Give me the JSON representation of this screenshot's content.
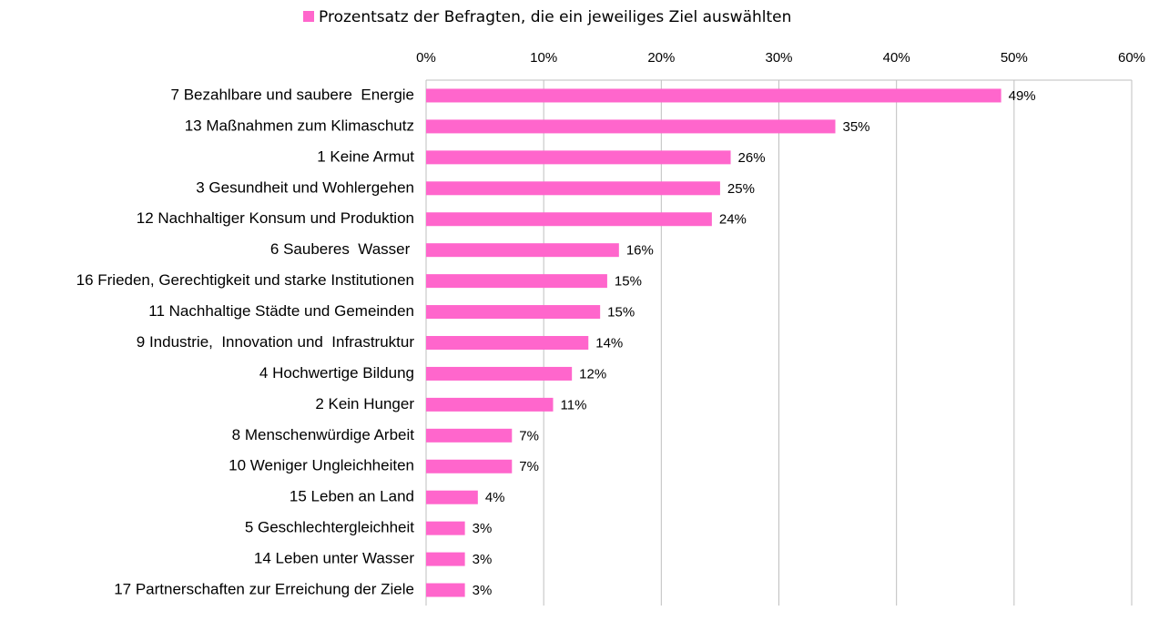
{
  "chart_data": {
    "type": "hbar",
    "categories": [
      "7 Bezahlbare und saubere  Energie",
      "13 Maßnahmen zum Klimaschutz",
      "1 Keine Armut",
      "3 Gesundheit und Wohlergehen",
      "12 Nachhaltiger Konsum und Produktion",
      "6 Sauberes  Wasser ",
      "16 Frieden, Gerechtigkeit und starke Institutionen",
      "11 Nachhaltige Städte und Gemeinden",
      "9 Industrie,  Innovation und  Infrastruktur",
      "4 Hochwertige Bildung",
      "2 Kein Hunger",
      "8 Menschenwürdige Arbeit",
      "10 Weniger Ungleichheiten",
      "15 Leben an Land",
      "5 Geschlechtergleichheit",
      "14 Leben unter Wasser",
      "17 Partnerschaften zur Erreichung der Ziele"
    ],
    "series": [
      {
        "name": "Prozentsatz der Befragten, die ein jeweiliges Ziel auswählten",
        "color": "#ff66cc",
        "values": [
          48.9,
          34.8,
          25.9,
          25.0,
          24.3,
          16.4,
          15.4,
          14.8,
          13.8,
          12.4,
          10.8,
          7.3,
          7.3,
          4.4,
          3.3,
          3.3,
          3.3
        ],
        "value_labels": [
          "49%",
          "35%",
          "26%",
          "25%",
          "24%",
          "16%",
          "15%",
          "15%",
          "14%",
          "12%",
          "11%",
          "7%",
          "7%",
          "4%",
          "3%",
          "3%",
          "3%"
        ]
      }
    ],
    "xlim": [
      0,
      60
    ],
    "xticks": [
      {
        "value": 0,
        "label": "0%"
      },
      {
        "value": 10,
        "label": "10%"
      },
      {
        "value": 20,
        "label": "20%"
      },
      {
        "value": 30,
        "label": "30%"
      },
      {
        "value": 40,
        "label": "40%"
      },
      {
        "value": 50,
        "label": "50%"
      },
      {
        "value": 60,
        "label": "60%"
      }
    ],
    "grid": true,
    "legend": "top"
  }
}
